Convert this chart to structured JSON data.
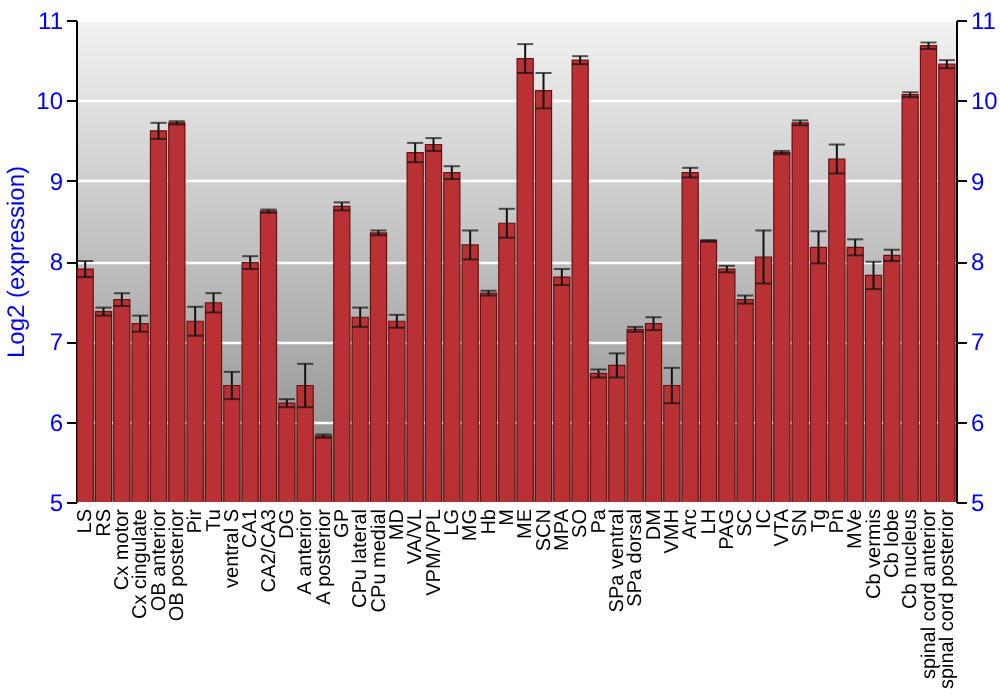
{
  "chart_data": {
    "type": "bar",
    "ylabel": "Log2 (expression)",
    "categories": [
      "LS",
      "RS",
      "Cx motor",
      "Cx cingulate",
      "OB anterior",
      "OB posterior",
      "Pir",
      "Tu",
      "ventral S",
      "CA1",
      "CA2/CA3",
      "DG",
      "A anterior",
      "A posterior",
      "GP",
      "CPu lateral",
      "CPu medial",
      "MD",
      "VA/VL",
      "VPM/VPL",
      "LG",
      "MG",
      "Hb",
      "M",
      "ME",
      "SCN",
      "MPA",
      "SO",
      "Pa",
      "SPa ventral",
      "SPa dorsal",
      "DM",
      "VMH",
      "Arc",
      "LH",
      "PAG",
      "SC",
      "IC",
      "VTA",
      "SN",
      "Tg",
      "Pn",
      "MVe",
      "Cb vermis",
      "Cb lobe",
      "Cb nucleus",
      "spinal cord anterior",
      "spinal cord posterior"
    ],
    "values": [
      7.9,
      7.37,
      7.52,
      7.22,
      9.62,
      9.72,
      7.25,
      7.48,
      6.45,
      7.98,
      8.62,
      6.23,
      6.45,
      5.82,
      8.68,
      7.3,
      8.35,
      7.25,
      9.35,
      9.45,
      9.1,
      8.2,
      7.6,
      8.47,
      10.52,
      10.12,
      7.8,
      10.5,
      6.6,
      6.7,
      7.15,
      7.22,
      6.45,
      9.1,
      8.25,
      7.9,
      7.52,
      8.05,
      9.35,
      9.72,
      8.17,
      9.27,
      8.17,
      7.82,
      8.07,
      10.07,
      10.68,
      10.45
    ],
    "errors": [
      0.1,
      0.05,
      0.08,
      0.1,
      0.1,
      0.02,
      0.18,
      0.12,
      0.17,
      0.08,
      0.02,
      0.05,
      0.27,
      0.02,
      0.05,
      0.12,
      0.03,
      0.08,
      0.12,
      0.08,
      0.08,
      0.18,
      0.03,
      0.18,
      0.18,
      0.22,
      0.1,
      0.05,
      0.05,
      0.15,
      0.03,
      0.08,
      0.22,
      0.06,
      0.01,
      0.04,
      0.05,
      0.33,
      0.02,
      0.03,
      0.2,
      0.18,
      0.1,
      0.17,
      0.07,
      0.03,
      0.04,
      0.05
    ],
    "color": "#b83235",
    "ylim": [
      5,
      11
    ],
    "yticks": [
      5,
      6,
      7,
      8,
      9,
      10,
      11
    ],
    "y2lim": [
      5,
      11
    ],
    "y2ticks": [
      5,
      6,
      7,
      8,
      9,
      10,
      11
    ],
    "grid": "y"
  }
}
